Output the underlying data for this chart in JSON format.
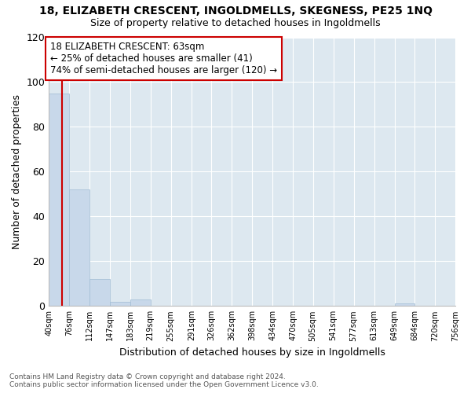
{
  "title": "18, ELIZABETH CRESCENT, INGOLDMELLS, SKEGNESS, PE25 1NQ",
  "subtitle": "Size of property relative to detached houses in Ingoldmells",
  "xlabel": "Distribution of detached houses by size in Ingoldmells",
  "ylabel": "Number of detached properties",
  "bar_color": "#c8d8ea",
  "bar_edge_color": "#a0bcd4",
  "property_line_x": 63,
  "bin_edges": [
    40,
    76,
    112,
    147,
    183,
    219,
    255,
    291,
    326,
    362,
    398,
    434,
    470,
    505,
    541,
    577,
    613,
    649,
    684,
    720,
    756
  ],
  "bin_labels": [
    "40sqm",
    "76sqm",
    "112sqm",
    "147sqm",
    "183sqm",
    "219sqm",
    "255sqm",
    "291sqm",
    "326sqm",
    "362sqm",
    "398sqm",
    "434sqm",
    "470sqm",
    "505sqm",
    "541sqm",
    "577sqm",
    "613sqm",
    "649sqm",
    "684sqm",
    "720sqm",
    "756sqm"
  ],
  "counts": [
    95,
    52,
    12,
    2,
    3,
    0,
    0,
    0,
    0,
    0,
    0,
    0,
    0,
    0,
    0,
    0,
    0,
    1,
    0,
    0
  ],
  "ylim": [
    0,
    120
  ],
  "yticks": [
    0,
    20,
    40,
    60,
    80,
    100,
    120
  ],
  "annotation_line1": "18 ELIZABETH CRESCENT: 63sqm",
  "annotation_line2": "← 25% of detached houses are smaller (41)",
  "annotation_line3": "74% of semi-detached houses are larger (120) →",
  "annotation_box_color": "#ffffff",
  "annotation_box_edge_color": "#cc0000",
  "property_line_color": "#cc0000",
  "footer_line1": "Contains HM Land Registry data © Crown copyright and database right 2024.",
  "footer_line2": "Contains public sector information licensed under the Open Government Licence v3.0.",
  "fig_bg_color": "#ffffff",
  "plot_bg_color": "#dde8f0"
}
